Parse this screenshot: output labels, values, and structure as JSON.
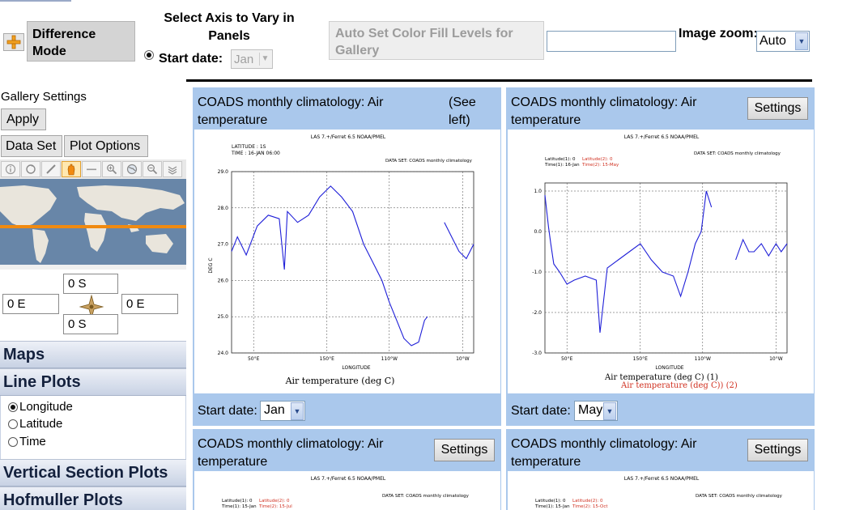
{
  "toolbar": {
    "difference_mode": "Difference Mode",
    "axis_title": "Select Axis to Vary in Panels",
    "start_date_label": "Start date:",
    "start_date_value": "Jan",
    "auto_set_label": "Auto Set Color Fill Levels for Gallery",
    "text_input_value": "",
    "image_zoom_label": "Image zoom:",
    "image_zoom_value": "Auto"
  },
  "sidebar": {
    "gallery_settings": "Gallery Settings",
    "apply": "Apply",
    "data_set": "Data Set",
    "plot_options": "Plot Options",
    "tools": [
      "info-icon",
      "reset-icon",
      "pan-icon",
      "hand-icon",
      "line-icon",
      "zoom-in-icon",
      "world-icon",
      "zoom-out-icon",
      "layers-icon"
    ],
    "coords": {
      "north": "0 S",
      "west": "0 E",
      "east": "0 E",
      "south": "0 S"
    },
    "menu": {
      "maps": "Maps",
      "line_plots": "Line Plots",
      "vertical_section": "Vertical Section Plots",
      "hofmuller": "Hofmuller Plots"
    },
    "axis_options": [
      "Longitude",
      "Latitude",
      "Time"
    ]
  },
  "gallery": {
    "panels": [
      {
        "title": "COADS monthly climatology: Air temperature",
        "see_left": "(See left)",
        "plot_header": "LAS 7.+/Ferret 6.5    NOAA/PMEL",
        "latitude_line": "LATITUDE : 1S",
        "time_line": "TIME : 16-JAN 06:00",
        "dataset_line": "DATA SET: COADS monthly climatology",
        "y_axis_label": "DEG C",
        "x_axis_label": "LONGITUDE",
        "caption": "Air temperature (deg C)",
        "footer_label": "Start date:",
        "footer_value": "Jan"
      },
      {
        "title": "COADS monthly climatology: Air temperature",
        "settings": "Settings",
        "plot_header": "LAS 7.+/Ferret 6.5    NOAA/PMEL",
        "legend1a": "Latitude(1): 0",
        "legend1b": "Latitude(2): 0",
        "legend2a": "Time(1): 16-Jan",
        "legend2b": "Time(2): 15-May",
        "dataset_line": "DATA SET: COADS monthly climatology",
        "x_axis_label": "LONGITUDE",
        "caption1": "Air temperature (deg C) (1)",
        "caption2": "Air temperature (deg C)) (2)",
        "footer_label": "Start date:",
        "footer_value": "May"
      },
      {
        "title": "COADS monthly climatology: Air temperature",
        "settings": "Settings",
        "plot_header": "LAS 7.+/Ferret 6.5    NOAA/PMEL",
        "legend1a": "Latitude(1): 0",
        "legend1b": "Latitude(2): 0",
        "legend2a": "Time(1): 15-Jan",
        "legend2b": "Time(2): 15-Jul",
        "dataset_line": "DATA SET: COADS monthly climatology"
      },
      {
        "title": "COADS monthly climatology: Air temperature",
        "settings": "Settings",
        "plot_header": "LAS 7.+/Ferret 6.5    NOAA/PMEL",
        "legend1a": "Latitude(1): 0",
        "legend1b": "Latitude(2): 0",
        "legend2a": "Time(1): 15-Jan",
        "legend2b": "Time(2): 15-Oct",
        "dataset_line": "DATA SET: COADS monthly climatology"
      }
    ]
  },
  "chart_data": [
    {
      "type": "line",
      "title": "Air temperature (deg C)",
      "xlabel": "LONGITUDE",
      "ylabel": "DEG C",
      "x_ticks": [
        "50°E",
        "150°E",
        "110°W",
        "10°W"
      ],
      "y_ticks": [
        "24.0",
        "25.0",
        "26.0",
        "27.0",
        "28.0",
        "29.0"
      ],
      "ylim": [
        24.0,
        29.0
      ],
      "grid": true,
      "series": [
        {
          "values": [
            [
              20,
              26.8
            ],
            [
              28,
              27.2
            ],
            [
              40,
              26.7
            ],
            [
              55,
              27.5
            ],
            [
              70,
              27.8
            ],
            [
              85,
              27.7
            ],
            [
              92,
              26.3
            ],
            [
              96,
              27.9
            ],
            [
              110,
              27.6
            ],
            [
              125,
              27.8
            ],
            [
              140,
              28.3
            ],
            [
              155,
              28.6
            ],
            [
              170,
              28.3
            ],
            [
              185,
              27.9
            ],
            [
              200,
              27.0
            ],
            [
              215,
              26.4
            ],
            [
              225,
              26.0
            ],
            [
              235,
              25.4
            ],
            [
              245,
              24.9
            ],
            [
              255,
              24.4
            ],
            [
              265,
              24.2
            ],
            [
              275,
              24.3
            ],
            [
              283,
              24.9
            ],
            [
              287,
              25.0
            ]
          ]
        },
        {
          "values": [
            [
              310,
              27.6
            ],
            [
              320,
              27.2
            ],
            [
              330,
              26.8
            ],
            [
              340,
              26.6
            ],
            [
              350,
              27.0
            ]
          ]
        }
      ]
    },
    {
      "type": "line",
      "title": "Air temperature (deg C) (1)",
      "xlabel": "LONGITUDE",
      "ylabel": "",
      "x_ticks": [
        "50°E",
        "150°E",
        "110°W",
        "10°W"
      ],
      "y_ticks": [
        "1.0",
        "0.0",
        "-1.0",
        "-2.0",
        "-3.0"
      ],
      "ylim": [
        -3.0,
        1.2
      ],
      "grid": true,
      "series": [
        {
          "values": [
            [
              20,
              0.9
            ],
            [
              25,
              0.1
            ],
            [
              28,
              -0.3
            ],
            [
              32,
              -0.8
            ],
            [
              40,
              -1.0
            ],
            [
              50,
              -1.3
            ],
            [
              60,
              -1.2
            ],
            [
              75,
              -1.1
            ],
            [
              90,
              -1.2
            ],
            [
              95,
              -2.5
            ],
            [
              105,
              -0.9
            ],
            [
              120,
              -0.7
            ],
            [
              135,
              -0.5
            ],
            [
              150,
              -0.3
            ],
            [
              165,
              -0.7
            ],
            [
              180,
              -1.0
            ],
            [
              195,
              -1.1
            ],
            [
              205,
              -1.6
            ],
            [
              215,
              -1.0
            ],
            [
              225,
              -0.3
            ],
            [
              233,
              0.0
            ],
            [
              240,
              1.0
            ],
            [
              247,
              0.6
            ]
          ]
        },
        {
          "values": [
            [
              280,
              -0.7
            ],
            [
              290,
              -0.2
            ],
            [
              298,
              -0.5
            ],
            [
              305,
              -0.5
            ],
            [
              315,
              -0.3
            ],
            [
              325,
              -0.6
            ],
            [
              335,
              -0.3
            ],
            [
              342,
              -0.5
            ],
            [
              350,
              -0.3
            ]
          ]
        }
      ]
    }
  ]
}
